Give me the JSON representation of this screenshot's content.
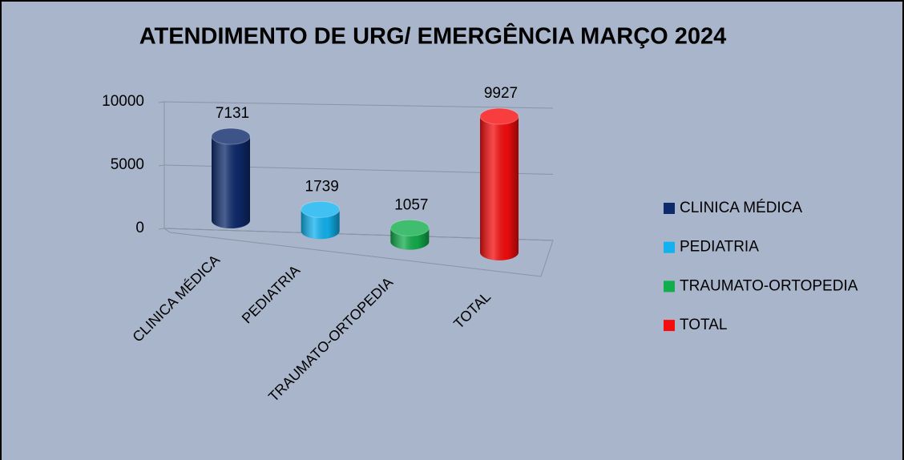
{
  "chart_data": {
    "type": "bar3d",
    "title": "ATENDIMENTO DE URG/ EMERGÊNCIA MARÇO 2024",
    "categories": [
      "CLINICA MÉDICA",
      "PEDIATRIA",
      "TRAUMATO-ORTOPEDIA",
      "TOTAL"
    ],
    "values": [
      7131,
      1739,
      1057,
      9927
    ],
    "colors": [
      "#0e2a6b",
      "#12b2ef",
      "#12ad4c",
      "#f50d0d"
    ],
    "ylim": [
      0,
      10000
    ],
    "yticks": [
      0,
      5000,
      10000
    ],
    "grid": true,
    "legend": "right"
  }
}
